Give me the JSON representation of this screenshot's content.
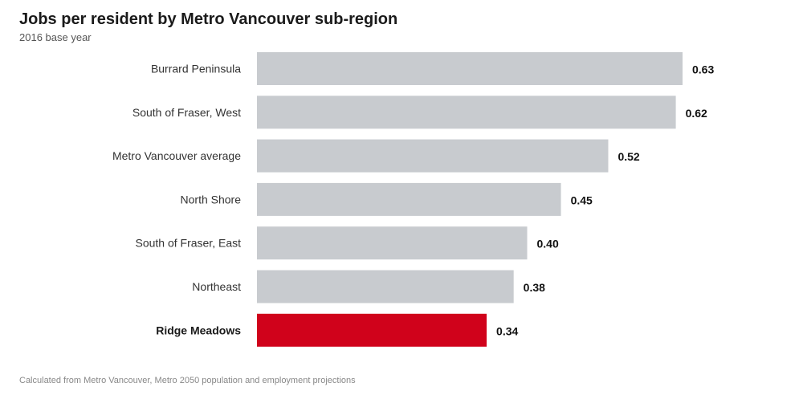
{
  "chart_data": {
    "type": "bar",
    "orientation": "horizontal",
    "title": "Jobs per resident by Metro Vancouver sub-region",
    "subtitle": "2016 base year",
    "categories": [
      "Burrard Peninsula",
      "South of Fraser, West",
      "Metro Vancouver average",
      "North Shore",
      "South of Fraser, East",
      "Northeast",
      "Ridge Meadows"
    ],
    "values": [
      0.63,
      0.62,
      0.52,
      0.45,
      0.4,
      0.38,
      0.34
    ],
    "value_labels": [
      "0.63",
      "0.62",
      "0.52",
      "0.45",
      "0.40",
      "0.38",
      "0.34"
    ],
    "highlight": "Ridge Meadows",
    "xlim": [
      0,
      0.63
    ],
    "grid": false,
    "colors": {
      "bar": "#c8cbcf",
      "highlight": "#d0021b"
    }
  },
  "footer": "Calculated from Metro Vancouver, Metro 2050 population and employment projections"
}
